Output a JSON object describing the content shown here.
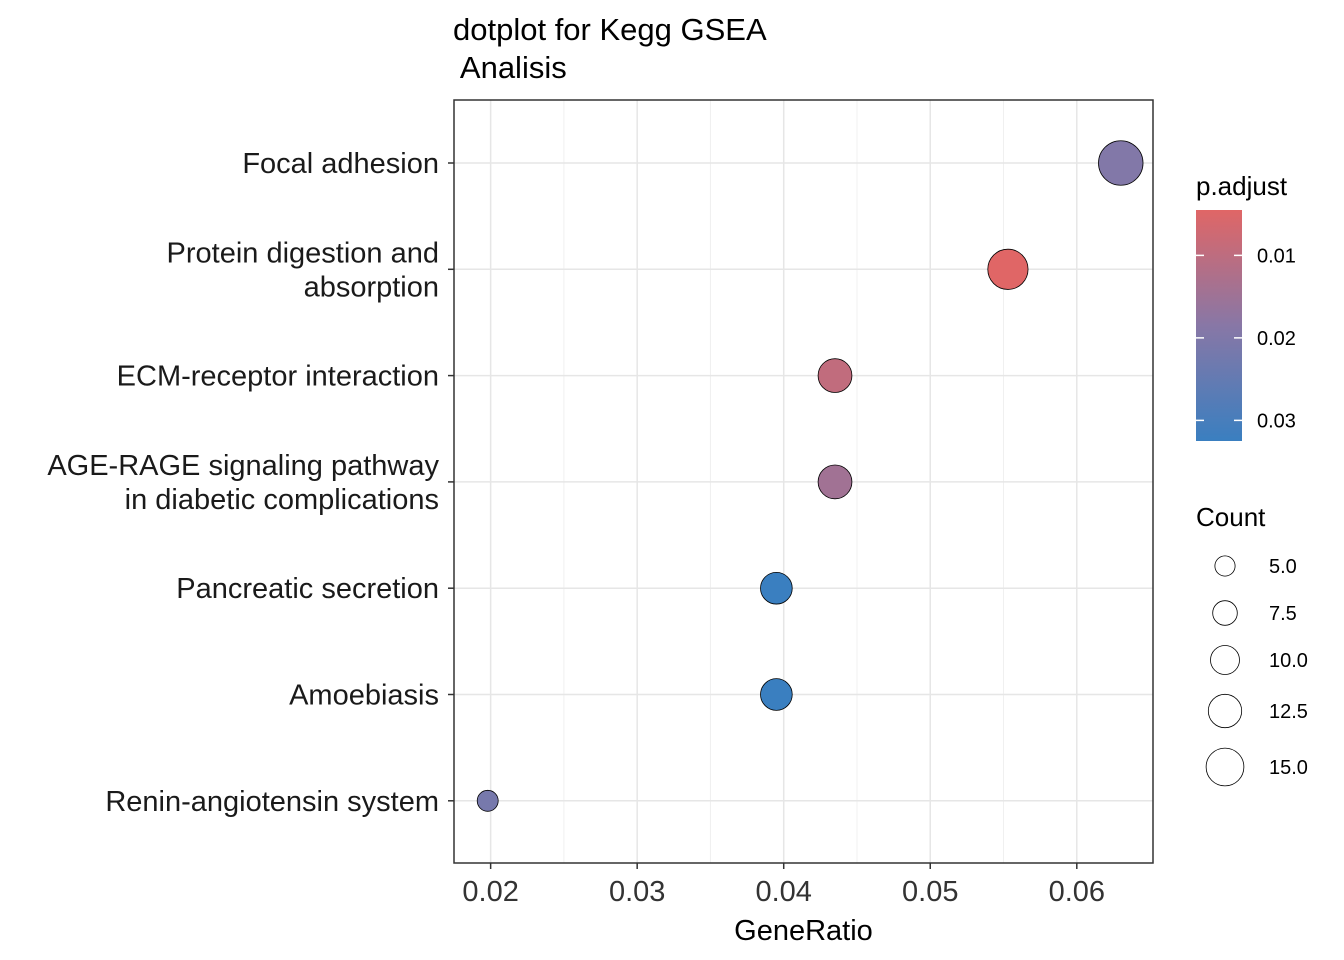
{
  "chart_data": {
    "type": "scatter",
    "title_lines": [
      "dotplot for Kegg GSEA",
      " Analisis"
    ],
    "xlabel": "GeneRatio",
    "ylabel": "",
    "xlim": [
      0.0175,
      0.0652
    ],
    "xticks": [
      0.02,
      0.03,
      0.04,
      0.05,
      0.06
    ],
    "xtick_labels": [
      "0.02",
      "0.03",
      "0.04",
      "0.05",
      "0.06"
    ],
    "grid": true,
    "categories": [
      {
        "lines": [
          "Focal adhesion"
        ]
      },
      {
        "lines": [
          "Protein digestion and",
          "absorption"
        ]
      },
      {
        "lines": [
          "ECM-receptor interaction"
        ]
      },
      {
        "lines": [
          "AGE-RAGE signaling pathway",
          "in diabetic complications"
        ]
      },
      {
        "lines": [
          "Pancreatic secretion"
        ]
      },
      {
        "lines": [
          "Amoebiasis"
        ]
      },
      {
        "lines": [
          "Renin-angiotensin system"
        ]
      }
    ],
    "points": [
      {
        "gene_ratio": 0.063,
        "count": 16,
        "p_adjust": 0.0195
      },
      {
        "gene_ratio": 0.0553,
        "count": 14,
        "p_adjust": 0.0045
      },
      {
        "gene_ratio": 0.0435,
        "count": 11,
        "p_adjust": 0.0095
      },
      {
        "gene_ratio": 0.0435,
        "count": 11,
        "p_adjust": 0.0145
      },
      {
        "gene_ratio": 0.0395,
        "count": 10,
        "p_adjust": 0.0325
      },
      {
        "gene_ratio": 0.0395,
        "count": 10,
        "p_adjust": 0.0325
      },
      {
        "gene_ratio": 0.0198,
        "count": 5,
        "p_adjust": 0.0215
      }
    ],
    "color_legend": {
      "title": "p.adjust",
      "range": [
        0.0045,
        0.0325
      ],
      "low_color": "#e06666",
      "mid_color": "#8877a6",
      "high_color": "#3a7fc0",
      "ticks": [
        0.01,
        0.02,
        0.03
      ],
      "tick_labels": [
        "0.01",
        "0.02",
        "0.03"
      ]
    },
    "size_legend": {
      "title": "Count",
      "values": [
        5.0,
        7.5,
        10.0,
        12.5,
        15.0
      ],
      "labels": [
        "5.0",
        "7.5",
        "10.0",
        "12.5",
        "15.0"
      ]
    }
  }
}
